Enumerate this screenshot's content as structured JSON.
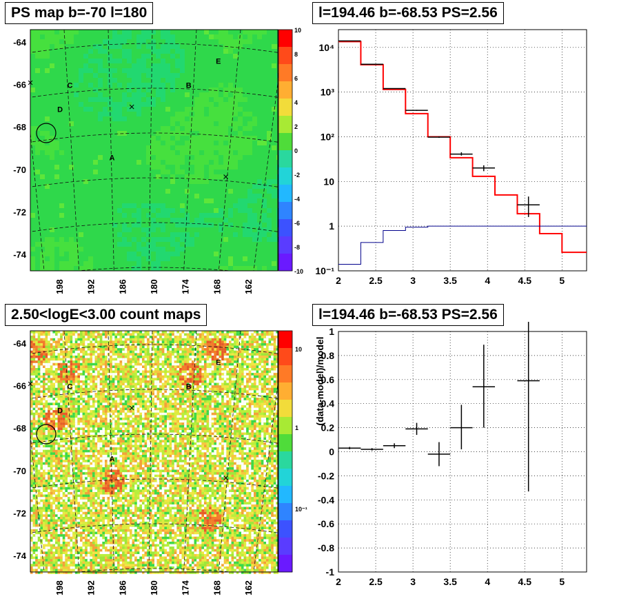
{
  "panels": {
    "ps_map": {
      "title": "PS map b=-70 l=180",
      "y_ticks": [
        "-64",
        "-66",
        "-68",
        "-70",
        "-72",
        "-74"
      ],
      "x_ticks": [
        "198",
        "192",
        "186",
        "180",
        "174",
        "168",
        "162"
      ],
      "colorbar_ticks": [
        "10",
        "8",
        "6",
        "4",
        "2",
        "0",
        "-2",
        "-4",
        "-6",
        "-8",
        "-10"
      ],
      "markers": [
        "A",
        "B",
        "C",
        "D",
        "E"
      ]
    },
    "count_map": {
      "title": "2.50<logE<3.00 count maps",
      "y_ticks": [
        "-64",
        "-66",
        "-68",
        "-70",
        "-72",
        "-74"
      ],
      "x_ticks": [
        "198",
        "192",
        "186",
        "180",
        "174",
        "168",
        "162"
      ],
      "colorbar_ticks": [
        "10",
        "1",
        "10⁻¹"
      ],
      "markers": [
        "A",
        "B",
        "C",
        "D",
        "E"
      ]
    },
    "spectrum": {
      "title": "l=194.46 b=-68.53 PS=2.56"
    },
    "residual": {
      "title": "l=194.46 b=-68.53 PS=2.56"
    }
  },
  "chart_data": [
    {
      "type": "heatmap",
      "title": "PS map b=-70 l=180",
      "xlabel": "",
      "ylabel": "",
      "x_ticks": [
        198,
        192,
        186,
        180,
        174,
        168,
        162
      ],
      "y_ticks": [
        -64,
        -66,
        -68,
        -70,
        -72,
        -74
      ],
      "color_range": [
        -10,
        10
      ],
      "colors": {
        "high": "#ff0000",
        "mid": "#33dd33",
        "low": "#5500ff"
      },
      "grid": true
    },
    {
      "type": "heatmap",
      "title": "2.50<logE<3.00 count maps",
      "xlabel": "",
      "ylabel": "",
      "x_ticks": [
        198,
        192,
        186,
        180,
        174,
        168,
        162
      ],
      "y_ticks": [
        -64,
        -66,
        -68,
        -70,
        -72,
        -74
      ],
      "color_scale": "log",
      "grid": true
    },
    {
      "type": "line",
      "title": "l=194.46 b=-68.53 PS=2.56",
      "xlabel": "",
      "ylabel": "",
      "xlim": [
        2,
        5.33
      ],
      "ylim": [
        0.1,
        25000
      ],
      "yscale": "log",
      "x_ticks": [
        2,
        2.5,
        3,
        3.5,
        4,
        4.5,
        5
      ],
      "y_tick_labels": [
        "10⁻¹",
        "1",
        "10",
        "10²",
        "10³",
        "10⁴"
      ],
      "grid": true,
      "series": [
        {
          "color": "#ff0000",
          "bins": [
            [
              2,
              2.3
            ],
            [
              2.3,
              2.6
            ],
            [
              2.6,
              2.9
            ],
            [
              2.9,
              3.2
            ],
            [
              3.2,
              3.5
            ],
            [
              3.5,
              3.8
            ],
            [
              3.8,
              4.1
            ],
            [
              4.1,
              4.4
            ],
            [
              4.4,
              4.7
            ],
            [
              4.7,
              5.0
            ],
            [
              5.0,
              5.33
            ]
          ],
          "values": [
            13500,
            4100,
            1150,
            330,
            100,
            34,
            13,
            5,
            1.9,
            0.68,
            0.26
          ]
        },
        {
          "color": "#000000",
          "x": [
            2.15,
            2.45,
            2.75,
            3.05,
            3.35,
            3.65,
            3.95,
            4.55
          ],
          "xerr": 0.15,
          "y": [
            14000,
            4200,
            1200,
            390,
            98,
            41,
            20,
            3
          ],
          "yerr_low": [
            14000,
            4150,
            1180,
            380,
            95,
            38,
            17,
            1.6
          ],
          "yerr_high": [
            14000,
            4250,
            1220,
            400,
            102,
            45,
            23,
            4.6
          ]
        },
        {
          "color": "#00008b",
          "bins": [
            [
              2,
              2.3
            ],
            [
              2.3,
              2.6
            ],
            [
              2.6,
              2.9
            ],
            [
              2.9,
              3.2
            ],
            [
              3.2,
              3.5
            ],
            [
              3.5,
              3.8
            ],
            [
              3.8,
              4.1
            ],
            [
              4.1,
              4.4
            ],
            [
              4.4,
              4.7
            ],
            [
              4.7,
              5.0
            ],
            [
              5.0,
              5.33
            ]
          ],
          "values": [
            0.14,
            0.43,
            0.8,
            0.95,
            1.0,
            1.0,
            1.0,
            1.0,
            1.0,
            1.0,
            1.0
          ]
        }
      ]
    },
    {
      "type": "scatter",
      "title": "l=194.46 b=-68.53 PS=2.56",
      "xlabel": "",
      "ylabel": "(data-model)/model",
      "xlim": [
        2,
        5.33
      ],
      "ylim": [
        -1,
        1
      ],
      "x_ticks": [
        2,
        2.5,
        3,
        3.5,
        4,
        4.5,
        5
      ],
      "y_ticks": [
        -1,
        -0.8,
        -0.6,
        -0.4,
        -0.2,
        0,
        0.2,
        0.4,
        0.6,
        0.8,
        1
      ],
      "grid": true,
      "series": [
        {
          "color": "#000000",
          "x": [
            2.15,
            2.45,
            2.75,
            3.05,
            3.35,
            3.65,
            3.95,
            4.55
          ],
          "xerr": 0.15,
          "y": [
            0.03,
            0.02,
            0.05,
            0.19,
            -0.02,
            0.2,
            0.54,
            0.59
          ],
          "yerr_low": [
            0.01,
            0.01,
            0.02,
            0.05,
            0.1,
            0.18,
            0.34,
            0.92
          ],
          "yerr_high": [
            0.01,
            0.01,
            0.02,
            0.05,
            0.1,
            0.19,
            0.35,
            0.5
          ]
        }
      ]
    }
  ]
}
